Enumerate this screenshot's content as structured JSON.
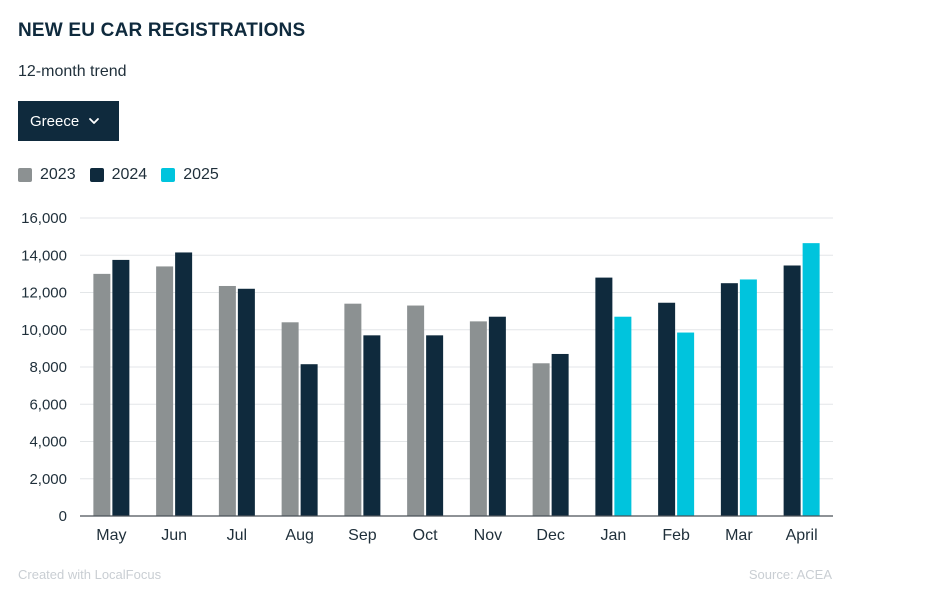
{
  "header": {
    "title": "NEW EU CAR REGISTRATIONS",
    "subtitle": "12-month trend"
  },
  "dropdown": {
    "selected": "Greece"
  },
  "footer": {
    "credit": "Created with LocalFocus",
    "source": "Source: ACEA"
  },
  "colors": {
    "2023": "#8c9192",
    "2024": "#0f2a3d",
    "2025": "#00c4dd"
  },
  "chart_data": {
    "type": "bar",
    "categories": [
      "May",
      "Jun",
      "Jul",
      "Aug",
      "Sep",
      "Oct",
      "Nov",
      "Dec",
      "Jan",
      "Feb",
      "Mar",
      "April"
    ],
    "series": [
      {
        "name": "2023",
        "values": [
          13000,
          13400,
          12350,
          10400,
          11400,
          11300,
          10450,
          8200,
          null,
          null,
          null,
          null
        ]
      },
      {
        "name": "2024",
        "values": [
          13750,
          14150,
          12200,
          8150,
          9700,
          9700,
          10700,
          8700,
          12800,
          11450,
          12500,
          13450
        ]
      },
      {
        "name": "2025",
        "values": [
          null,
          null,
          null,
          null,
          null,
          null,
          null,
          null,
          10700,
          9850,
          12700,
          14650
        ]
      }
    ],
    "yticks": [
      "0",
      "2,000",
      "4,000",
      "6,000",
      "8,000",
      "10,000",
      "12,000",
      "14,000",
      "16,000"
    ],
    "ylim": [
      0,
      16000
    ],
    "legend": [
      "2023",
      "2024",
      "2025"
    ],
    "legend_position": "top-left",
    "grid": true
  }
}
